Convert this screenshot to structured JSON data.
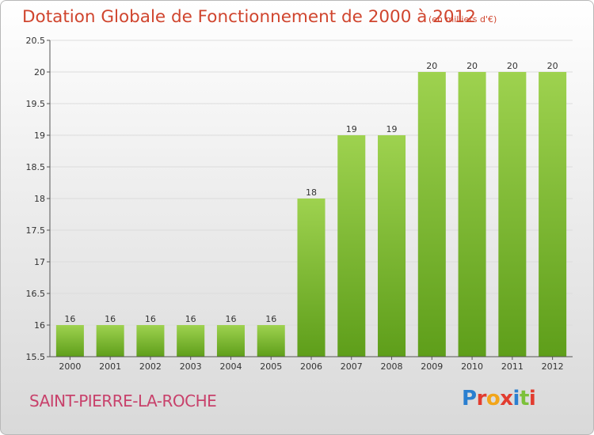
{
  "header": {
    "title": "Dotation Globale de Fonctionnement de 2000 à 2012",
    "unit": "(en milliers d'€)"
  },
  "footer": {
    "commune": "SAINT-PIERRE-LA-ROCHE",
    "logo_letters": [
      "P",
      "r",
      "o",
      "x",
      "i",
      "t",
      "i"
    ],
    "logo_colors": [
      "#2a7fd0",
      "#e23c2f",
      "#f2a51a",
      "#e23c2f",
      "#2a7fd0",
      "#7cc13a",
      "#e23c2f"
    ]
  },
  "colors": {
    "bar_top": "#9ed24f",
    "bar_bottom": "#5e9e1a",
    "grid": "#dcdcdc",
    "axis": "#555555"
  },
  "chart_data": {
    "type": "bar",
    "categories": [
      "2000",
      "2001",
      "2002",
      "2003",
      "2004",
      "2005",
      "2006",
      "2007",
      "2008",
      "2009",
      "2010",
      "2011",
      "2012"
    ],
    "values": [
      16,
      16,
      16,
      16,
      16,
      16,
      18,
      19,
      19,
      20,
      20,
      20,
      20
    ],
    "data_labels": [
      "16",
      "16",
      "16",
      "16",
      "16",
      "16",
      "18",
      "19",
      "19",
      "20",
      "20",
      "20",
      "20"
    ],
    "ylim": [
      15.5,
      20.5
    ],
    "yticks": [
      15.5,
      16,
      16.5,
      17,
      17.5,
      18,
      18.5,
      19,
      19.5,
      20,
      20.5
    ],
    "ytick_labels": [
      "15.5",
      "16",
      "16.5",
      "17",
      "17.5",
      "18",
      "18.5",
      "19",
      "19.5",
      "20",
      "20.5"
    ],
    "grid": true
  }
}
